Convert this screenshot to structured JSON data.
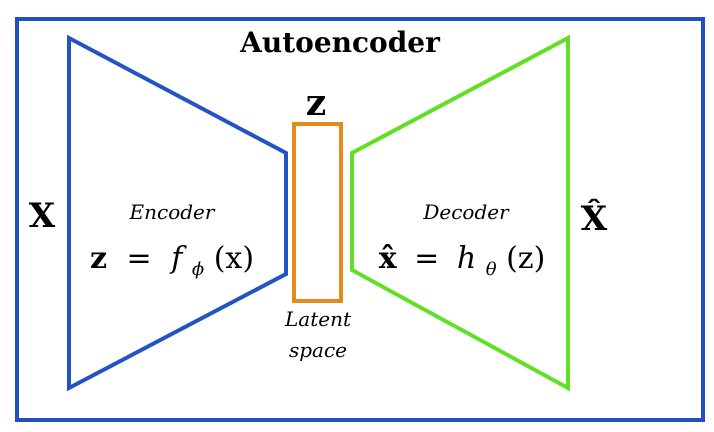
{
  "title": "Autoencoder",
  "input_label": "X",
  "output_label": "X̂",
  "latent_label": "z",
  "encoder": {
    "label": "Encoder",
    "formula_lhs": "z",
    "formula_eq": "=",
    "formula_func": "f",
    "formula_sub": "ϕ",
    "formula_arg": "(x)"
  },
  "decoder": {
    "label": "Decoder",
    "formula_lhs": "x̂",
    "formula_eq": "=",
    "formula_func": "h",
    "formula_sub": "θ",
    "formula_arg": "(z)"
  },
  "latent_space": {
    "line1": "Latent",
    "line2": "space"
  },
  "colors": {
    "frame": "#1f4fc1",
    "encoder": "#2453c3",
    "decoder": "#5fe024",
    "latent": "#e8891d"
  }
}
